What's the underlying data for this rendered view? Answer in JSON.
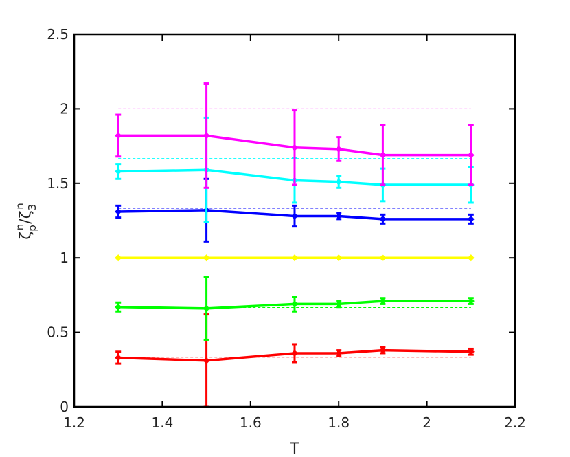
{
  "chart_data": {
    "type": "line",
    "xlabel": "T",
    "ylabel": {
      "symbol_1": "ζ",
      "sup_1": "n",
      "sub_1": "p",
      "separator": "/",
      "symbol_2": "ζ",
      "sup_2": "n",
      "sub_2": "3"
    },
    "xlim": [
      1.2,
      2.2
    ],
    "ylim": [
      0,
      2.5
    ],
    "xticks": [
      1.2,
      1.4,
      1.6,
      1.8,
      2.0,
      2.2
    ],
    "xtick_labels": [
      "1.2",
      "1.4",
      "1.6",
      "1.8",
      "2",
      "2.2"
    ],
    "yticks": [
      0,
      0.5,
      1.0,
      1.5,
      2.0,
      2.5
    ],
    "ytick_labels": [
      "0",
      "0.5",
      "1",
      "1.5",
      "2",
      "2.5"
    ],
    "grid": false,
    "x": [
      1.3,
      1.5,
      1.7,
      1.8,
      1.9,
      2.1
    ],
    "series": [
      {
        "color": "#ff0000",
        "values": [
          0.33,
          0.31,
          0.36,
          0.36,
          0.38,
          0.37
        ],
        "errors": [
          0.04,
          0.31,
          0.06,
          0.02,
          0.02,
          0.02
        ],
        "reference": 0.3333
      },
      {
        "color": "#00ff00",
        "values": [
          0.67,
          0.66,
          0.69,
          0.69,
          0.71,
          0.71
        ],
        "errors": [
          0.03,
          0.21,
          0.05,
          0.02,
          0.02,
          0.02
        ],
        "reference": 0.6667
      },
      {
        "color": "#ffff00",
        "values": [
          1.0,
          1.0,
          1.0,
          1.0,
          1.0,
          1.0
        ],
        "errors": [
          0,
          0,
          0,
          0,
          0,
          0
        ],
        "reference": null
      },
      {
        "color": "#0000ff",
        "values": [
          1.31,
          1.32,
          1.28,
          1.28,
          1.26,
          1.26
        ],
        "errors": [
          0.04,
          0.21,
          0.07,
          0.02,
          0.03,
          0.03
        ],
        "reference": 1.3333
      },
      {
        "color": "#00ffff",
        "values": [
          1.58,
          1.59,
          1.52,
          1.51,
          1.49,
          1.49
        ],
        "errors": [
          0.05,
          0.35,
          0.15,
          0.04,
          0.11,
          0.12
        ],
        "reference": 1.6667
      },
      {
        "color": "#ff00ff",
        "values": [
          1.82,
          1.82,
          1.74,
          1.73,
          1.69,
          1.69
        ],
        "errors": [
          0.14,
          0.35,
          0.25,
          0.08,
          0.2,
          0.2
        ],
        "reference": 2.0
      }
    ],
    "reference_x_range": [
      1.3,
      2.1
    ]
  }
}
